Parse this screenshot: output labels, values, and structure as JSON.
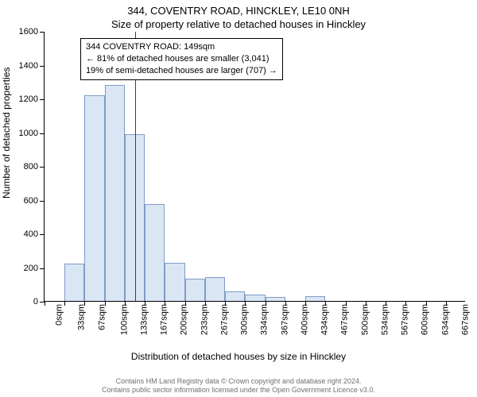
{
  "title": {
    "line1": "344, COVENTRY ROAD, HINCKLEY, LE10 0NH",
    "line2": "Size of property relative to detached houses in Hinckley"
  },
  "chart": {
    "type": "histogram",
    "ylabel": "Number of detached properties",
    "xlabel": "Distribution of detached houses by size in Hinckley",
    "ylim": [
      0,
      1600
    ],
    "yticks": [
      0,
      200,
      400,
      600,
      800,
      1000,
      1200,
      1400,
      1600
    ],
    "xcategories": [
      "0sqm",
      "33sqm",
      "67sqm",
      "100sqm",
      "133sqm",
      "167sqm",
      "200sqm",
      "233sqm",
      "267sqm",
      "300sqm",
      "334sqm",
      "367sqm",
      "400sqm",
      "434sqm",
      "467sqm",
      "500sqm",
      "534sqm",
      "567sqm",
      "600sqm",
      "634sqm",
      "667sqm"
    ],
    "values": [
      0,
      220,
      1220,
      1280,
      990,
      575,
      225,
      130,
      140,
      55,
      40,
      25,
      0,
      30,
      0,
      0,
      0,
      0,
      0,
      0,
      0
    ],
    "bar_fill": "#dbe6f5",
    "bar_stroke": "#7f9cc5",
    "reference_line": {
      "category_index": 4.5,
      "color": "#d40000",
      "width": 1
    },
    "background_color": "#ffffff",
    "title_fontsize": 13,
    "label_fontsize": 12,
    "tick_fontsize": 11,
    "bar_width_ratio": 1.0
  },
  "info_box": {
    "line1": "344 COVENTRY ROAD: 149sqm",
    "line2": "← 81% of detached houses are smaller (3,041)",
    "line3": "19% of semi-detached houses are larger (707) →",
    "border_color": "#000000",
    "background": "#ffffff",
    "fontsize": 11
  },
  "footer": {
    "line1": "Contains HM Land Registry data © Crown copyright and database right 2024.",
    "line2": "Contains public sector information licensed under the Open Government Licence v3.0.",
    "color": "#6f6f6f",
    "fontsize": 9
  }
}
